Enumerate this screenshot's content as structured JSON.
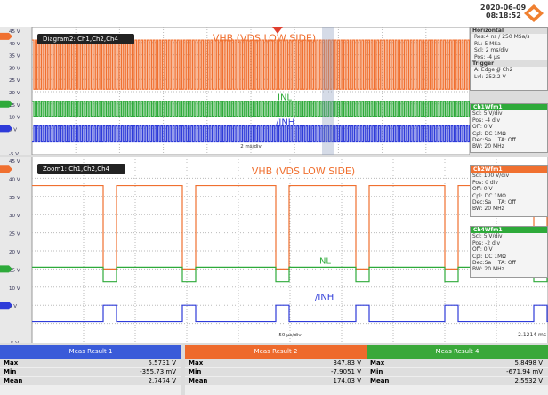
{
  "header": {
    "date": "2020-06-09",
    "time": "08:18:52"
  },
  "diagram": {
    "title": "Diagram2: Ch1,Ch2,Ch4",
    "axis_labels": [
      "45 V",
      "40 V",
      "35 V",
      "30 V",
      "25 V",
      "20 V",
      "15 V",
      "10 V",
      "5 V",
      "-5 V"
    ],
    "vhb": "VHB (VDS LOW SIDE)",
    "inl": "INL",
    "inh": "/INH",
    "timebase": "2 ms/div"
  },
  "horizontal": {
    "title": "Horizontal",
    "lines": [
      "Res:4 ns / 250 MSa/s",
      "RL: 5 MSa",
      "Scl: 2 ms/div",
      "Pos: -4 µs"
    ]
  },
  "trigger": {
    "title": "Trigger",
    "lines": [
      "A: Edge ∯ Ch2",
      "Lvl: 252.2 V"
    ]
  },
  "zoom": {
    "title": "Zoom1: Ch1,Ch2,Ch4",
    "axis_labels": [
      "45 V",
      "40 V",
      "35 V",
      "30 V",
      "25 V",
      "20 V",
      "15 V",
      "10 V",
      "5 V",
      "-5 V"
    ],
    "vhb": "VHB (VDS LOW SIDE)",
    "inl": "INL",
    "inh": "/INH",
    "timebase": "50 µs/div",
    "position": "2.1214 ms"
  },
  "channels": [
    {
      "title": "Ch1Wfm1",
      "lines": [
        "Scl: 5 V/div",
        "Pos: -4 div",
        "Off: 0 V",
        "Cpl: DC 1MΩ",
        "Dec:Sa    TA: Off",
        "BW: 20 MHz"
      ]
    },
    {
      "title": "Ch2Wfm1",
      "lines": [
        "Scl: 100 V/div",
        "Pos: 0 div",
        "Off: 0 V",
        "Cpl: DC 1MΩ",
        "Dec:Sa    TA: Off",
        "BW: 20 MHz"
      ]
    },
    {
      "title": "Ch4Wfm1",
      "lines": [
        "Scl: 5 V/div",
        "Pos: -2 div",
        "Off: 0 V",
        "Cpl: DC 1MΩ",
        "Dec:Sa    TA: Off",
        "BW: 20 MHz"
      ]
    }
  ],
  "measurements": [
    {
      "title": "Meas Result 1",
      "rows": [
        [
          "Max",
          "5.5731 V"
        ],
        [
          "Min",
          "-355.73 mV"
        ],
        [
          "Mean",
          "2.7474 V"
        ]
      ]
    },
    {
      "title": "Meas Result 2",
      "rows": [
        [
          "Max",
          "347.83 V"
        ],
        [
          "Min",
          "-7.9051 V"
        ],
        [
          "Mean",
          "174.03 V"
        ]
      ]
    },
    {
      "title": "Meas Result 4",
      "rows": [
        [
          "Max",
          "5.8498 V"
        ],
        [
          "Min",
          "-671.94 mV"
        ],
        [
          "Mean",
          "2.5532 V"
        ]
      ]
    }
  ]
}
